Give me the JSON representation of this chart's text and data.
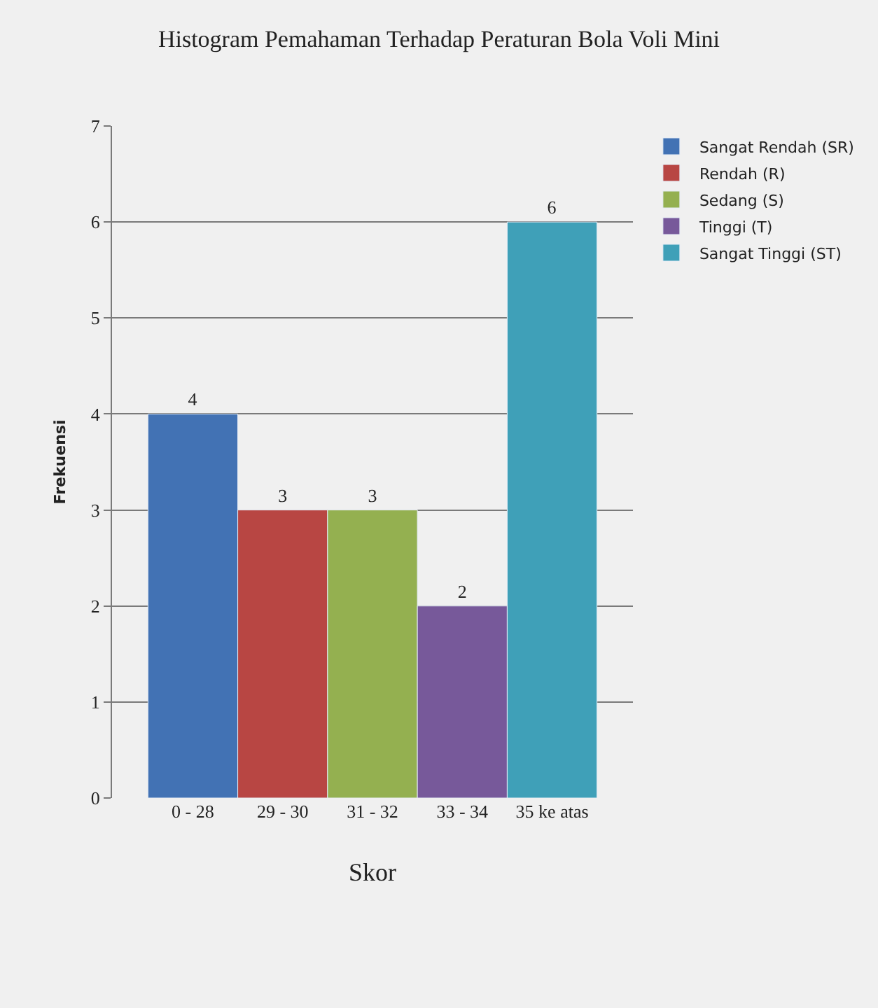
{
  "chart_data": {
    "type": "bar",
    "title": "Histogram Pemahaman Terhadap Peraturan Bola Voli Mini",
    "xlabel": "Skor",
    "ylabel": "Frekuensi",
    "categories": [
      "0 - 28",
      "29 - 30",
      "31 - 32",
      "33 - 34",
      "35 ke atas"
    ],
    "series": [
      {
        "name": "Sangat Rendah (SR)",
        "color": "#4272b4",
        "values": [
          4,
          null,
          null,
          null,
          null
        ]
      },
      {
        "name": "Rendah (R)",
        "color": "#b84643",
        "values": [
          null,
          3,
          null,
          null,
          null
        ]
      },
      {
        "name": "Sedang (S)",
        "color": "#94b050",
        "values": [
          null,
          null,
          3,
          null,
          null
        ]
      },
      {
        "name": "Tinggi (T)",
        "color": "#77599a",
        "values": [
          null,
          null,
          null,
          2,
          null
        ]
      },
      {
        "name": "Sangat Tinggi (ST)",
        "color": "#3fa0b8",
        "values": [
          null,
          null,
          null,
          null,
          6
        ]
      }
    ],
    "ylim": [
      0,
      7
    ],
    "yticks": [
      0,
      1,
      2,
      3,
      4,
      5,
      6,
      7
    ],
    "grid": "y",
    "legend": "right",
    "data_labels": true
  }
}
